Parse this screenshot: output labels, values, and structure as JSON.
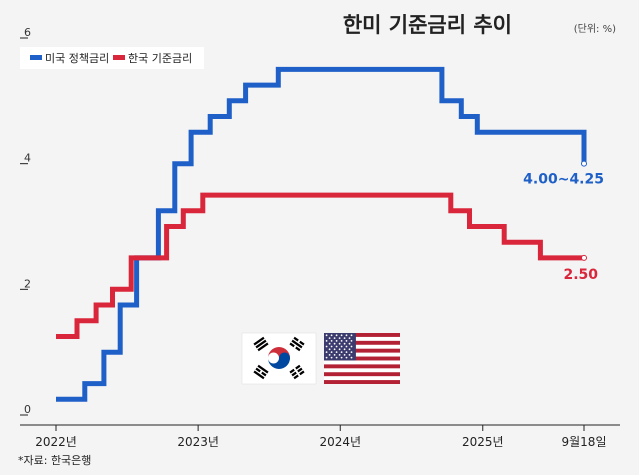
{
  "chart_data": {
    "type": "line",
    "title": "한미 기준금리 추이",
    "unit_note": "(단위: %)",
    "y_ticks": [
      "0",
      "2",
      "4",
      "6"
    ],
    "ylim": [
      0,
      6
    ],
    "x_ticks": [
      {
        "label": "2022년",
        "x": "2022-01-01"
      },
      {
        "label": "2023년",
        "x": "2023-01-01"
      },
      {
        "label": "2024년",
        "x": "2024-01-01"
      },
      {
        "label": "2025년",
        "x": "2025-01-01"
      },
      {
        "label": "9월18일",
        "x": "2025-09-18"
      }
    ],
    "xlim": [
      "2022-01-01",
      "2025-09-18"
    ],
    "series": [
      {
        "name": "미국 정책금리",
        "color": "#1f5fc8",
        "steps": [
          {
            "date": "2022-01-01",
            "value": 0.25
          },
          {
            "date": "2022-03-16",
            "value": 0.5
          },
          {
            "date": "2022-05-04",
            "value": 1.0
          },
          {
            "date": "2022-06-15",
            "value": 1.75
          },
          {
            "date": "2022-07-27",
            "value": 2.5
          },
          {
            "date": "2022-09-21",
            "value": 3.25
          },
          {
            "date": "2022-11-02",
            "value": 4.0
          },
          {
            "date": "2022-12-14",
            "value": 4.5
          },
          {
            "date": "2023-02-01",
            "value": 4.75
          },
          {
            "date": "2023-03-22",
            "value": 5.0
          },
          {
            "date": "2023-05-03",
            "value": 5.25
          },
          {
            "date": "2023-07-26",
            "value": 5.5
          },
          {
            "date": "2024-09-18",
            "value": 5.0
          },
          {
            "date": "2024-11-07",
            "value": 4.75
          },
          {
            "date": "2024-12-18",
            "value": 4.5
          },
          {
            "date": "2025-09-18",
            "value": 4.0
          }
        ],
        "end_label": "4.00~4.25"
      },
      {
        "name": "한국 기준금리",
        "color": "#d9263a",
        "steps": [
          {
            "date": "2022-01-01",
            "value": 1.25
          },
          {
            "date": "2022-02-24",
            "value": 1.5
          },
          {
            "date": "2022-04-14",
            "value": 1.75
          },
          {
            "date": "2022-05-26",
            "value": 2.0
          },
          {
            "date": "2022-07-13",
            "value": 2.5
          },
          {
            "date": "2022-08-25",
            "value": 2.5
          },
          {
            "date": "2022-10-12",
            "value": 3.0
          },
          {
            "date": "2022-11-24",
            "value": 3.25
          },
          {
            "date": "2023-01-13",
            "value": 3.5
          },
          {
            "date": "2024-10-11",
            "value": 3.25
          },
          {
            "date": "2024-11-28",
            "value": 3.0
          },
          {
            "date": "2025-02-25",
            "value": 2.75
          },
          {
            "date": "2025-05-29",
            "value": 2.5
          },
          {
            "date": "2025-09-18",
            "value": 2.5
          }
        ],
        "end_label": "2.50"
      }
    ],
    "legend_position": "top-left",
    "grid": false
  },
  "source": "*자료: 한국은행",
  "flags": [
    "태극기",
    "성조기"
  ]
}
